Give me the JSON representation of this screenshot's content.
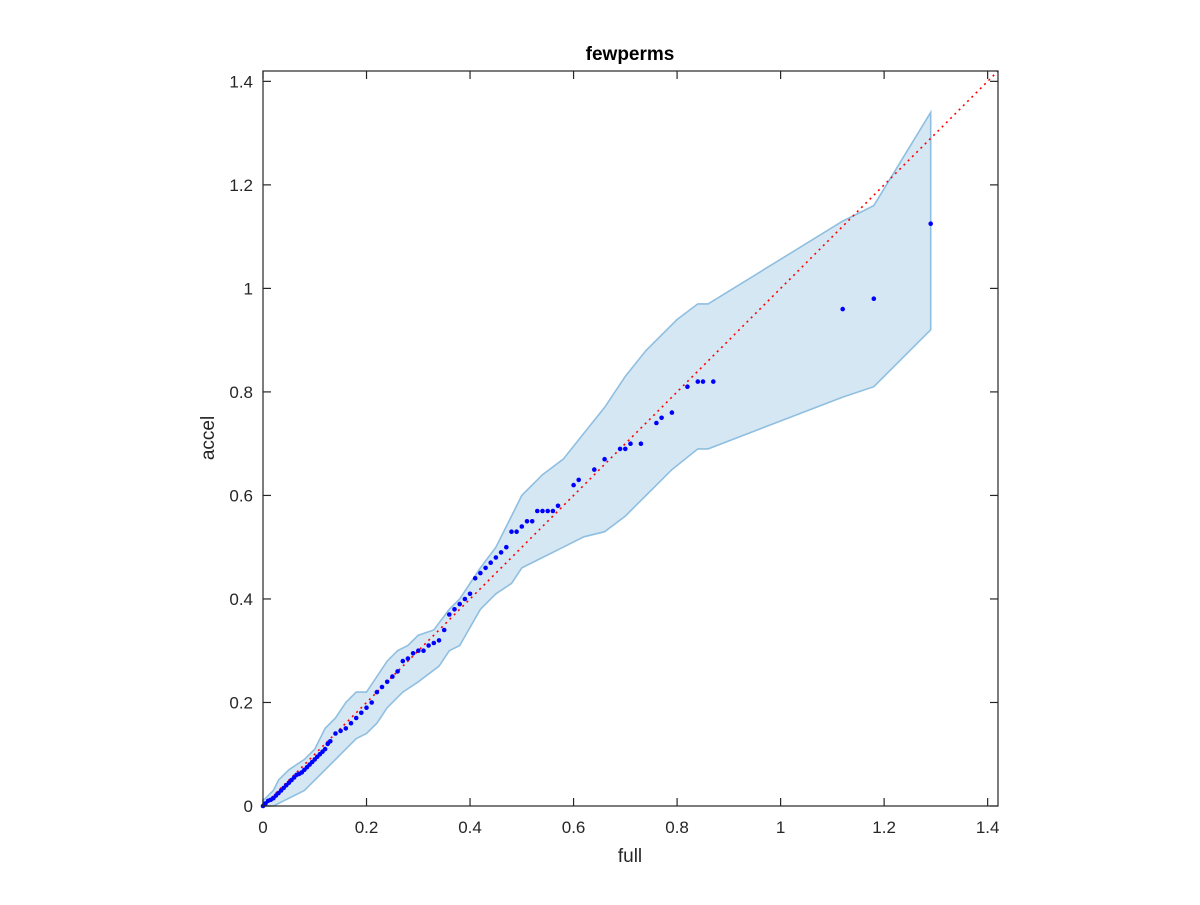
{
  "chart_data": {
    "type": "scatter",
    "title": "fewperms",
    "xlabel": "full",
    "ylabel": "accel",
    "xlim": [
      0,
      1.42
    ],
    "ylim": [
      0,
      1.42
    ],
    "xticks": [
      0,
      0.2,
      0.4,
      0.6,
      0.8,
      1,
      1.2,
      1.4
    ],
    "yticks": [
      0,
      0.2,
      0.4,
      0.6,
      0.8,
      1,
      1.2,
      1.4
    ],
    "xtick_labels": [
      "0",
      "0.2",
      "0.4",
      "0.6",
      "0.8",
      "1",
      "1.2",
      "1.4"
    ],
    "ytick_labels": [
      "0",
      "0.2",
      "0.4",
      "0.6",
      "0.8",
      "1",
      "1.2",
      "1.4"
    ],
    "grid": false,
    "legend": "none",
    "colors": {
      "points": "#0000ff",
      "reference_line": "#ff0000",
      "band_fill": "#d6e7f4",
      "band_edge": "#8fbfe0",
      "axes": "#262626"
    },
    "reference_line": {
      "style": "dotted",
      "x": [
        0,
        1.42
      ],
      "y": [
        0,
        1.42
      ]
    },
    "band": {
      "upper": [
        [
          0,
          0.01
        ],
        [
          0.01,
          0.02
        ],
        [
          0.02,
          0.03
        ],
        [
          0.03,
          0.05
        ],
        [
          0.05,
          0.07
        ],
        [
          0.08,
          0.09
        ],
        [
          0.1,
          0.11
        ],
        [
          0.12,
          0.15
        ],
        [
          0.14,
          0.17
        ],
        [
          0.16,
          0.2
        ],
        [
          0.18,
          0.22
        ],
        [
          0.2,
          0.22
        ],
        [
          0.22,
          0.25
        ],
        [
          0.24,
          0.28
        ],
        [
          0.26,
          0.3
        ],
        [
          0.28,
          0.31
        ],
        [
          0.3,
          0.33
        ],
        [
          0.33,
          0.34
        ],
        [
          0.36,
          0.38
        ],
        [
          0.38,
          0.4
        ],
        [
          0.4,
          0.43
        ],
        [
          0.42,
          0.46
        ],
        [
          0.45,
          0.5
        ],
        [
          0.48,
          0.56
        ],
        [
          0.5,
          0.6
        ],
        [
          0.54,
          0.64
        ],
        [
          0.58,
          0.67
        ],
        [
          0.62,
          0.72
        ],
        [
          0.66,
          0.77
        ],
        [
          0.7,
          0.83
        ],
        [
          0.74,
          0.88
        ],
        [
          0.8,
          0.94
        ],
        [
          0.84,
          0.97
        ],
        [
          0.86,
          0.97
        ],
        [
          1.12,
          1.13
        ],
        [
          1.18,
          1.16
        ],
        [
          1.29,
          1.34
        ]
      ],
      "lower": [
        [
          1.29,
          0.92
        ],
        [
          1.18,
          0.81
        ],
        [
          1.12,
          0.79
        ],
        [
          0.86,
          0.69
        ],
        [
          0.84,
          0.69
        ],
        [
          0.79,
          0.65
        ],
        [
          0.74,
          0.6
        ],
        [
          0.7,
          0.56
        ],
        [
          0.66,
          0.53
        ],
        [
          0.62,
          0.52
        ],
        [
          0.58,
          0.5
        ],
        [
          0.54,
          0.48
        ],
        [
          0.5,
          0.46
        ],
        [
          0.48,
          0.43
        ],
        [
          0.45,
          0.41
        ],
        [
          0.42,
          0.38
        ],
        [
          0.38,
          0.31
        ],
        [
          0.36,
          0.3
        ],
        [
          0.34,
          0.27
        ],
        [
          0.3,
          0.24
        ],
        [
          0.27,
          0.22
        ],
        [
          0.24,
          0.19
        ],
        [
          0.22,
          0.16
        ],
        [
          0.2,
          0.14
        ],
        [
          0.18,
          0.13
        ],
        [
          0.16,
          0.11
        ],
        [
          0.14,
          0.09
        ],
        [
          0.12,
          0.07
        ],
        [
          0.1,
          0.05
        ],
        [
          0.08,
          0.03
        ],
        [
          0.06,
          0.02
        ],
        [
          0.04,
          0.01
        ],
        [
          0.02,
          0.0
        ],
        [
          0,
          0
        ]
      ]
    },
    "series": [
      {
        "x": [
          0.0,
          0.005,
          0.01,
          0.015,
          0.02,
          0.025,
          0.03,
          0.035,
          0.04,
          0.045,
          0.05,
          0.055,
          0.06,
          0.065,
          0.07,
          0.075,
          0.08,
          0.085,
          0.09,
          0.095,
          0.1,
          0.105,
          0.11,
          0.115,
          0.12,
          0.125,
          0.13,
          0.14,
          0.15,
          0.16,
          0.17,
          0.18,
          0.19,
          0.2,
          0.21,
          0.22,
          0.23,
          0.24,
          0.25,
          0.26,
          0.27,
          0.28,
          0.29,
          0.3,
          0.31,
          0.32,
          0.33,
          0.34,
          0.35,
          0.36,
          0.37,
          0.38,
          0.39,
          0.4,
          0.41,
          0.42,
          0.43,
          0.44,
          0.45,
          0.46,
          0.47,
          0.48,
          0.49,
          0.5,
          0.51,
          0.52,
          0.53,
          0.54,
          0.55,
          0.56,
          0.57,
          0.6,
          0.61,
          0.64,
          0.66,
          0.69,
          0.7,
          0.71,
          0.73,
          0.76,
          0.77,
          0.79,
          0.82,
          0.84,
          0.85,
          0.87,
          1.12,
          1.18,
          1.29
        ],
        "y": [
          0.0,
          0.005,
          0.01,
          0.012,
          0.015,
          0.02,
          0.025,
          0.03,
          0.035,
          0.04,
          0.045,
          0.05,
          0.055,
          0.06,
          0.062,
          0.065,
          0.07,
          0.075,
          0.08,
          0.085,
          0.09,
          0.095,
          0.1,
          0.105,
          0.11,
          0.12,
          0.125,
          0.14,
          0.145,
          0.15,
          0.16,
          0.17,
          0.18,
          0.19,
          0.2,
          0.22,
          0.23,
          0.24,
          0.25,
          0.26,
          0.28,
          0.285,
          0.295,
          0.3,
          0.3,
          0.31,
          0.315,
          0.32,
          0.34,
          0.37,
          0.38,
          0.39,
          0.4,
          0.41,
          0.44,
          0.45,
          0.46,
          0.47,
          0.48,
          0.49,
          0.5,
          0.53,
          0.53,
          0.54,
          0.55,
          0.55,
          0.57,
          0.57,
          0.57,
          0.57,
          0.58,
          0.62,
          0.63,
          0.65,
          0.67,
          0.69,
          0.69,
          0.7,
          0.7,
          0.74,
          0.75,
          0.76,
          0.81,
          0.82,
          0.82,
          0.82,
          0.96,
          0.98,
          1.125
        ]
      }
    ]
  }
}
